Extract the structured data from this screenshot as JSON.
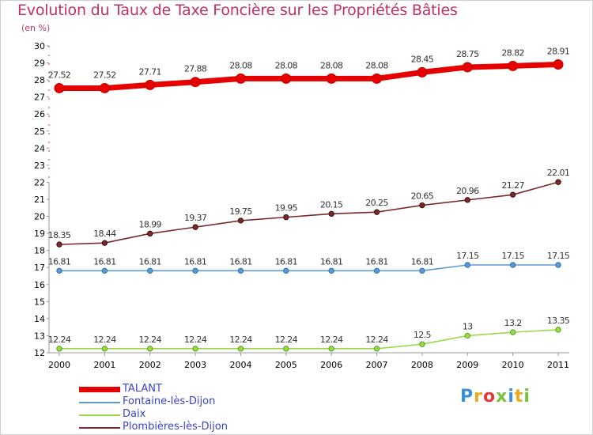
{
  "header": {
    "title": "Evolution du Taux de Taxe Foncière sur les Propriétés Bâties",
    "unit": "(en %)"
  },
  "logo": {
    "text": "Proxiti",
    "letters": [
      {
        "char": "P",
        "color": "#3b8fd8"
      },
      {
        "char": "r",
        "color": "#f0a81c"
      },
      {
        "char": "o",
        "color": "#e23b3b"
      },
      {
        "char": "x",
        "color": "#76c23a"
      },
      {
        "char": "i",
        "color": "#3b8fd8"
      },
      {
        "char": "t",
        "color": "#f0a81c"
      },
      {
        "char": "i",
        "color": "#76c23a"
      }
    ]
  },
  "chart_data": {
    "type": "line",
    "title": "Evolution du Taux de Taxe Foncière sur les Propriétés Bâties",
    "ylabel": "(en %)",
    "ylim": [
      12,
      30
    ],
    "y_ticks": [
      12,
      13,
      14,
      15,
      16,
      17,
      18,
      19,
      20,
      21,
      22,
      23,
      24,
      25,
      26,
      27,
      28,
      29,
      30
    ],
    "grid": false,
    "legend_position": "bottom-left",
    "x": [
      "2000",
      "2001",
      "2002",
      "2003",
      "2004",
      "2005",
      "2006",
      "2007",
      "2008",
      "2009",
      "2010",
      "2011"
    ],
    "series": [
      {
        "name": "TALANT",
        "color": "#e60000",
        "values": [
          27.52,
          27.52,
          27.71,
          27.88,
          28.08,
          28.08,
          28.08,
          28.08,
          28.45,
          28.75,
          28.82,
          28.91
        ],
        "labels": [
          "27.52",
          "27.52",
          "27.71",
          "27.88",
          "28.08",
          "28.08",
          "28.08",
          "28.08",
          "28.45",
          "28.75",
          "28.82",
          "28.91"
        ]
      },
      {
        "name": "Fontaine-lès-Dijon",
        "color": "#5b9bd5",
        "values": [
          16.81,
          16.81,
          16.81,
          16.81,
          16.81,
          16.81,
          16.81,
          16.81,
          16.81,
          17.15,
          17.15,
          17.15
        ],
        "labels": [
          "16.81",
          "16.81",
          "16.81",
          "16.81",
          "16.81",
          "16.81",
          "16.81",
          "16.81",
          "16.81",
          "17.15",
          "17.15",
          "17.15"
        ]
      },
      {
        "name": "Daix",
        "color": "#9ad94a",
        "values": [
          12.24,
          12.24,
          12.24,
          12.24,
          12.24,
          12.24,
          12.24,
          12.24,
          12.5,
          13,
          13.2,
          13.35
        ],
        "labels": [
          "12.24",
          "12.24",
          "12.24",
          "12.24",
          "12.24",
          "12.24",
          "12.24",
          "12.24",
          "12.5",
          "13",
          "13.2",
          "13.35"
        ]
      },
      {
        "name": "Plombières-lès-Dijon",
        "color": "#7a2a2a",
        "values": [
          18.35,
          18.44,
          18.99,
          19.37,
          19.75,
          19.95,
          20.15,
          20.25,
          20.65,
          20.96,
          21.27,
          22.01
        ],
        "labels": [
          "18.35",
          "18.44",
          "18.99",
          "19.37",
          "19.75",
          "19.95",
          "20.15",
          "20.25",
          "20.65",
          "20.96",
          "21.27",
          "22.01"
        ]
      }
    ]
  }
}
